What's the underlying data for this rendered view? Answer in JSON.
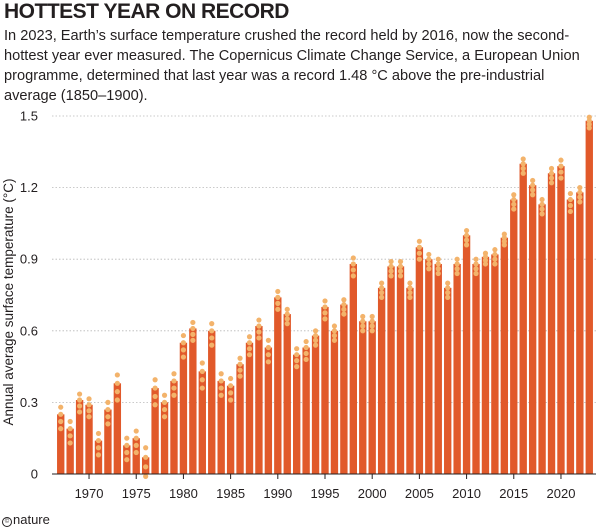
{
  "title": "HOTTEST YEAR ON RECORD",
  "subtitle": "In 2023, Earth’s surface temperature crushed the record held by 2016, now the second-hottest year ever measured. The Copernicus Climate Change Service, a European Union programme, determined that last year was a record 1.48 °C above the pre-industrial average (1850–1900).",
  "logo": {
    "symbol": "©",
    "text": "nature"
  },
  "colors": {
    "bar": "#e1592a",
    "dot": "#f3b36b",
    "grid": "#b8b8b8",
    "text": "#231f20"
  },
  "chart_data": {
    "type": "bar",
    "title": "",
    "xlabel": "",
    "ylabel": "Annual average surface temperature (°C)",
    "ylim": [
      0,
      1.5
    ],
    "yticks": [
      "0",
      "0.3",
      "0.6",
      "0.9",
      "1.2",
      "1.5"
    ],
    "xticks": [
      "1970",
      "1975",
      "1980",
      "1985",
      "1990",
      "1995",
      "2000",
      "2005",
      "2010",
      "2015",
      "2020"
    ],
    "grid": true,
    "x": [
      1967,
      1968,
      1969,
      1970,
      1971,
      1972,
      1973,
      1974,
      1975,
      1976,
      1977,
      1978,
      1979,
      1980,
      1981,
      1982,
      1983,
      1984,
      1985,
      1986,
      1987,
      1988,
      1989,
      1990,
      1991,
      1992,
      1993,
      1994,
      1995,
      1996,
      1997,
      1998,
      1999,
      2000,
      2001,
      2002,
      2003,
      2004,
      2005,
      2006,
      2007,
      2008,
      2009,
      2010,
      2011,
      2012,
      2013,
      2014,
      2015,
      2016,
      2017,
      2018,
      2019,
      2020,
      2021,
      2022,
      2023
    ],
    "values": [
      0.25,
      0.19,
      0.31,
      0.29,
      0.14,
      0.27,
      0.38,
      0.12,
      0.15,
      0.07,
      0.36,
      0.3,
      0.39,
      0.55,
      0.61,
      0.43,
      0.6,
      0.39,
      0.37,
      0.46,
      0.55,
      0.62,
      0.53,
      0.74,
      0.67,
      0.5,
      0.53,
      0.58,
      0.7,
      0.6,
      0.71,
      0.88,
      0.64,
      0.64,
      0.78,
      0.87,
      0.87,
      0.78,
      0.95,
      0.9,
      0.88,
      0.78,
      0.88,
      1.0,
      0.88,
      0.91,
      0.92,
      0.99,
      1.15,
      1.3,
      1.21,
      1.13,
      1.26,
      1.29,
      1.15,
      1.18,
      1.48
    ],
    "dot_spread": [
      0.06,
      0.06,
      0.05,
      0.05,
      0.06,
      0.06,
      0.07,
      0.06,
      0.06,
      0.08,
      0.07,
      0.06,
      0.06,
      0.06,
      0.05,
      0.07,
      0.06,
      0.06,
      0.06,
      0.05,
      0.05,
      0.05,
      0.06,
      0.05,
      0.04,
      0.05,
      0.05,
      0.04,
      0.05,
      0.04,
      0.04,
      0.05,
      0.04,
      0.04,
      0.04,
      0.04,
      0.04,
      0.04,
      0.05,
      0.04,
      0.04,
      0.04,
      0.04,
      0.04,
      0.04,
      0.03,
      0.04,
      0.03,
      0.04,
      0.04,
      0.04,
      0.04,
      0.04,
      0.05,
      0.05,
      0.04,
      0.03
    ]
  }
}
